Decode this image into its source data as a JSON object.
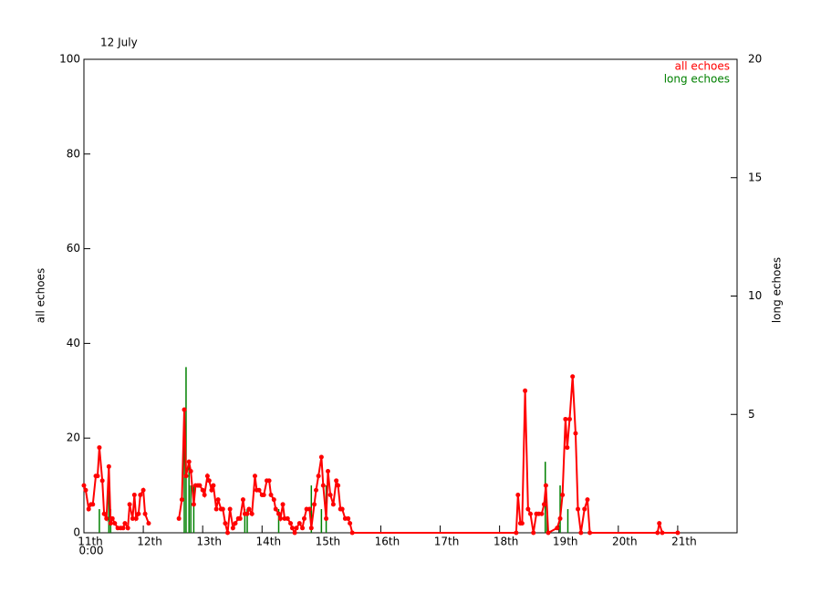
{
  "chart_data": {
    "type": "line",
    "title": "12 July",
    "x_start_label": "0:00",
    "y_label": "all echoes",
    "y2_label": "long echoes",
    "xlim": [
      0,
      11
    ],
    "xticks": [
      {
        "value": 0,
        "label": "11th"
      },
      {
        "value": 1,
        "label": "12th"
      },
      {
        "value": 2,
        "label": "13th"
      },
      {
        "value": 3,
        "label": "14th"
      },
      {
        "value": 4,
        "label": "15th"
      },
      {
        "value": 5,
        "label": "16th"
      },
      {
        "value": 6,
        "label": "17th"
      },
      {
        "value": 7,
        "label": "18th"
      },
      {
        "value": 8,
        "label": "19th"
      },
      {
        "value": 9,
        "label": "20th"
      },
      {
        "value": 10,
        "label": "21th"
      }
    ],
    "ylim": [
      0,
      100
    ],
    "yticks": [
      0,
      20,
      40,
      60,
      80,
      100
    ],
    "y2lim": [
      0,
      20
    ],
    "y2ticks": [
      5,
      10,
      15,
      20
    ],
    "legend": "upper right",
    "series": [
      {
        "name": "all echoes",
        "color": "#ff0000",
        "x": [
          0.0,
          0.03,
          0.08,
          0.12,
          0.15,
          0.2,
          0.23,
          0.26,
          0.31,
          0.34,
          0.38,
          0.42,
          0.45,
          0.48,
          0.52,
          0.57,
          0.62,
          0.66,
          0.69,
          0.74,
          0.77,
          0.82,
          0.85,
          0.88,
          0.92,
          0.95,
          1.0,
          1.03,
          1.09,
          1.5,
          1.6,
          1.65,
          1.69,
          1.72,
          1.77,
          1.8,
          1.85,
          1.88,
          1.92,
          1.95,
          2.0,
          2.03,
          2.08,
          2.11,
          2.15,
          2.18,
          2.23,
          2.26,
          2.31,
          2.34,
          2.38,
          2.42,
          2.46,
          2.51,
          2.55,
          2.6,
          2.63,
          2.68,
          2.71,
          2.75,
          2.78,
          2.83,
          2.88,
          2.91,
          2.95,
          3.0,
          3.03,
          3.08,
          3.12,
          3.15,
          3.2,
          3.23,
          3.28,
          3.31,
          3.35,
          3.38,
          3.43,
          3.48,
          3.51,
          3.55,
          3.58,
          3.63,
          3.68,
          3.71,
          3.75,
          3.8,
          3.83,
          3.88,
          3.91,
          3.95,
          4.0,
          4.03,
          4.08,
          4.11,
          4.15,
          4.2,
          4.25,
          4.28,
          4.32,
          4.35,
          4.4,
          4.45,
          4.48,
          4.52,
          7.28,
          7.31,
          7.35,
          7.38,
          7.43,
          7.48,
          7.52,
          7.57,
          7.62,
          7.66,
          7.71,
          7.75,
          7.78,
          7.82,
          7.97,
          8.02,
          8.06,
          8.11,
          8.14,
          8.18,
          8.23,
          8.28,
          8.32,
          8.37,
          8.43,
          8.48,
          8.52,
          9.66,
          9.69,
          9.74,
          10.0
        ],
        "values": [
          10,
          9,
          5,
          6,
          6,
          12,
          12,
          18,
          11,
          4,
          3,
          14,
          2,
          3,
          2,
          1,
          1,
          1,
          2,
          1,
          6,
          3,
          8,
          3,
          4,
          8,
          9,
          4,
          2,
          null,
          3,
          7,
          26,
          12,
          15,
          13,
          6,
          10,
          10,
          10,
          9,
          8,
          12,
          11,
          9,
          10,
          5,
          7,
          5,
          5,
          2,
          0,
          5,
          1,
          2,
          3,
          3,
          7,
          4,
          4,
          5,
          4,
          12,
          9,
          9,
          8,
          8,
          11,
          11,
          8,
          7,
          5,
          4,
          3,
          6,
          3,
          3,
          2,
          1,
          0,
          1,
          2,
          1,
          3,
          5,
          5,
          1,
          6,
          9,
          12,
          16,
          10,
          3,
          13,
          8,
          6,
          11,
          10,
          5,
          5,
          3,
          3,
          2,
          0,
          0,
          8,
          2,
          2,
          30,
          5,
          4,
          0,
          4,
          4,
          4,
          6,
          10,
          0,
          1,
          3,
          8,
          24,
          18,
          24,
          33,
          21,
          5,
          0,
          5,
          7,
          0,
          0,
          2,
          0,
          0
        ]
      },
      {
        "name": "long echoes",
        "color": "#008000",
        "axis": "y2",
        "style": "bar",
        "x": [
          0.26,
          0.42,
          0.45,
          1.69,
          1.72,
          1.77,
          1.8,
          1.85,
          2.71,
          2.75,
          3.28,
          3.83,
          4.0,
          4.08,
          7.77,
          7.8,
          8.02,
          8.15
        ],
        "values": [
          1,
          2,
          1,
          4,
          7,
          3,
          2,
          2,
          1,
          1,
          1,
          2,
          1,
          2,
          3,
          1,
          2,
          1
        ]
      }
    ]
  }
}
